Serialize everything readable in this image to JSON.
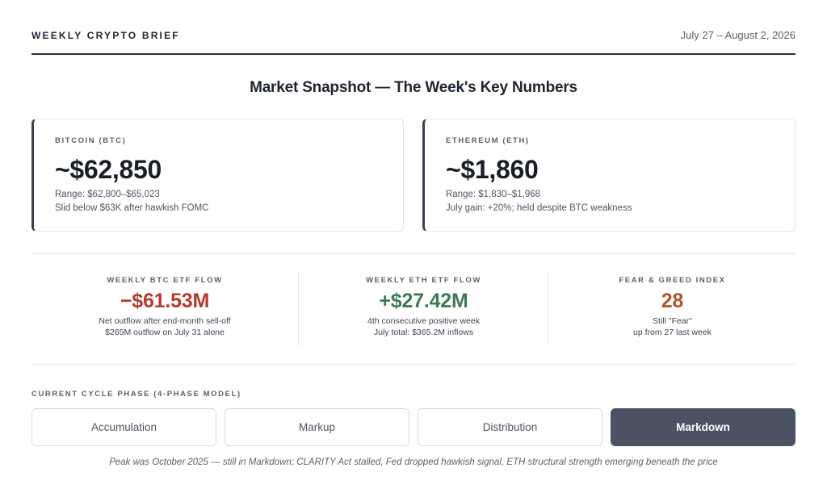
{
  "header": {
    "brand": "WEEKLY CRYPTO BRIEF",
    "dates": "July 27 – August 2, 2026"
  },
  "title": "Market Snapshot — The Week's Key Numbers",
  "cards": {
    "btc": {
      "label": "BITCOIN (BTC)",
      "price": "~$62,850",
      "range": "Range: $62,800–$65,023",
      "note": "Slid below $63K after hawkish FOMC"
    },
    "eth": {
      "label": "ETHEREUM (ETH)",
      "price": "~$1,860",
      "range": "Range: $1,830–$1,968",
      "note": "July gain: +20%; held despite BTC weakness"
    }
  },
  "stats": {
    "btc_etf": {
      "label": "WEEKLY BTC ETF FLOW",
      "value": "−$61.53M",
      "note1": "Net outflow after end-month sell-off",
      "note2": "$265M outflow on July 31 alone"
    },
    "eth_etf": {
      "label": "WEEKLY ETH ETF FLOW",
      "value": "+$27.42M",
      "note1": "4th consecutive positive week",
      "note2": "July total: $365.2M inflows"
    },
    "fear_greed": {
      "label": "FEAR & GREED INDEX",
      "value": "28",
      "note1": "Still \"Fear\"",
      "note2": "up from 27 last week"
    }
  },
  "cycle": {
    "label": "CURRENT CYCLE PHASE (4-PHASE MODEL)",
    "phases": [
      "Accumulation",
      "Markup",
      "Distribution",
      "Markdown"
    ],
    "active": "Markdown",
    "footnote": "Peak was October 2025 — still in Markdown; CLARITY Act stalled, Fed dropped hawkish signal, ETH structural strength emerging beneath the price"
  },
  "colors": {
    "negative": "#b63a2e",
    "positive": "#3f7a56",
    "index": "#b0592a",
    "active_phase": "#4b5263"
  }
}
